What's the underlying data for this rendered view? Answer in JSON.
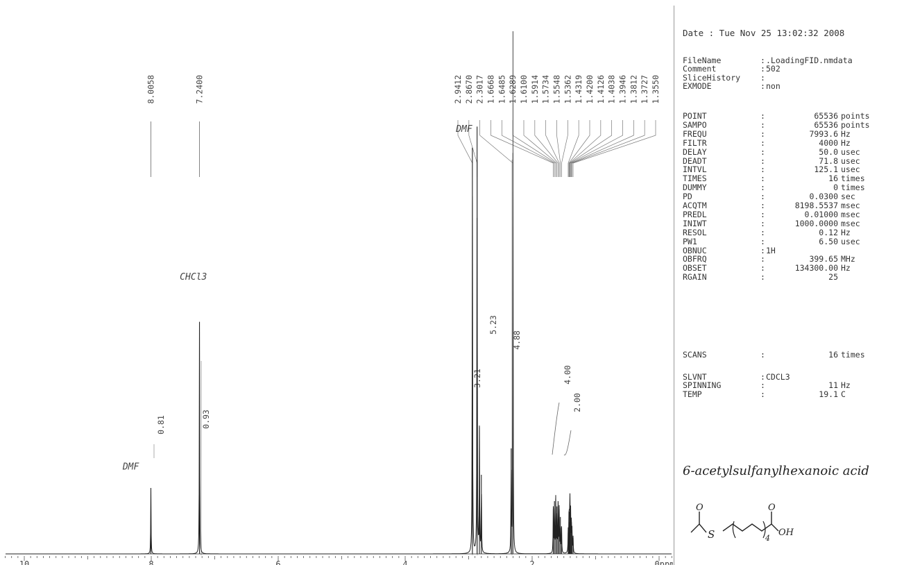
{
  "chart_data": {
    "type": "line",
    "title": "",
    "xlabel": "",
    "ylabel": "",
    "x_unit": "ppm",
    "xlim": [
      10.5,
      -0.3
    ],
    "x_ticks": [
      "10",
      "8",
      "6",
      "4",
      "2",
      "0ppm"
    ],
    "x_tick_values": [
      10,
      8,
      6,
      4,
      2,
      0
    ],
    "peak_labels": [
      "8.0058",
      "7.2400",
      "2.9412",
      "2.8670",
      "2.3017",
      "1.6668",
      "1.6485",
      "1.6289",
      "1.6100",
      "1.5914",
      "1.5734",
      "1.5548",
      "1.5362",
      "1.4319",
      "1.4200",
      "1.4126",
      "1.4038",
      "1.3946",
      "1.3812",
      "1.3727",
      "1.3550"
    ],
    "integrals": [
      {
        "label": "0.81",
        "ppm": 8.0058
      },
      {
        "label": "0.93",
        "ppm": 7.24
      },
      {
        "label": "3.21",
        "ppm": 2.9412
      },
      {
        "label": "5.23",
        "ppm": 2.867
      },
      {
        "label": "4.88",
        "ppm": 2.3017
      },
      {
        "label": "4.00",
        "ppm": 1.62
      },
      {
        "label": "2.00",
        "ppm": 1.4
      }
    ],
    "peaks": [
      {
        "ppm": 8.0058,
        "height": 0.125
      },
      {
        "ppm": 7.24,
        "height": 0.44
      },
      {
        "ppm": 2.9412,
        "height": 0.77
      },
      {
        "ppm": 2.867,
        "height": 0.81
      },
      {
        "ppm": 2.83,
        "height": 0.24
      },
      {
        "ppm": 2.8,
        "height": 0.15
      },
      {
        "ppm": 2.3017,
        "height": 0.76
      },
      {
        "ppm": 2.33,
        "height": 0.2
      },
      {
        "ppm": 1.6668,
        "height": 0.085
      },
      {
        "ppm": 1.6485,
        "height": 0.1
      },
      {
        "ppm": 1.6289,
        "height": 0.105
      },
      {
        "ppm": 1.61,
        "height": 0.09
      },
      {
        "ppm": 1.5914,
        "height": 0.1
      },
      {
        "ppm": 1.5734,
        "height": 0.085
      },
      {
        "ppm": 1.5548,
        "height": 0.07
      },
      {
        "ppm": 1.5362,
        "height": 0.05
      },
      {
        "ppm": 1.4319,
        "height": 0.04
      },
      {
        "ppm": 1.42,
        "height": 0.06
      },
      {
        "ppm": 1.4126,
        "height": 0.08
      },
      {
        "ppm": 1.4038,
        "height": 0.09
      },
      {
        "ppm": 1.3946,
        "height": 0.08
      },
      {
        "ppm": 1.3812,
        "height": 0.06
      },
      {
        "ppm": 1.3727,
        "height": 0.045
      },
      {
        "ppm": 1.355,
        "height": 0.03
      }
    ],
    "annotations": [
      {
        "text": "DMF",
        "ppm": 8.45,
        "y": 0.16
      },
      {
        "text": "CHCl3",
        "ppm": 7.55,
        "y": 0.52
      },
      {
        "text": "DMF",
        "ppm": 3.2,
        "y": 0.8
      }
    ]
  },
  "params": {
    "date": "Date : Tue Nov 25 13:02:32 2008",
    "header_rows": [
      {
        "key": "FileName",
        "value": ".LoadingFID.nmdata"
      },
      {
        "key": "Comment",
        "value": "502"
      },
      {
        "key": "SliceHistory",
        "value": ""
      },
      {
        "key": "EXMODE",
        "value": "non"
      }
    ],
    "acq_rows": [
      {
        "key": "POINT",
        "value": "65536",
        "unit": "points"
      },
      {
        "key": "SAMPO",
        "value": "65536",
        "unit": "points"
      },
      {
        "key": "FREQU",
        "value": "7993.6",
        "unit": "Hz"
      },
      {
        "key": "FILTR",
        "value": "4000",
        "unit": "Hz"
      },
      {
        "key": "DELAY",
        "value": "50.0",
        "unit": "usec"
      },
      {
        "key": "DEADT",
        "value": "71.8",
        "unit": "usec"
      },
      {
        "key": "INTVL",
        "value": "125.1",
        "unit": "usec"
      },
      {
        "key": "TIMES",
        "value": "16",
        "unit": "times"
      },
      {
        "key": "DUMMY",
        "value": "0",
        "unit": "times"
      },
      {
        "key": "PD",
        "value": "0.0300",
        "unit": "sec"
      },
      {
        "key": "ACQTM",
        "value": "8198.5537",
        "unit": "msec"
      },
      {
        "key": "PREDL",
        "value": "0.01000",
        "unit": "msec"
      },
      {
        "key": "INIWT",
        "value": "1000.0000",
        "unit": "msec"
      },
      {
        "key": "RESOL",
        "value": "0.12",
        "unit": "Hz"
      },
      {
        "key": "PW1",
        "value": "6.50",
        "unit": "usec"
      },
      {
        "key": "OBNUC",
        "text": "1H"
      },
      {
        "key": "OBFRQ",
        "value": "399.65",
        "unit": "MHz"
      },
      {
        "key": "OBSET",
        "value": "134300.00",
        "unit": "Hz"
      },
      {
        "key": "RGAIN",
        "value": "25",
        "unit": ""
      }
    ],
    "scans_row": {
      "key": "SCANS",
      "value": "16",
      "unit": "times"
    },
    "tail_rows": [
      {
        "key": "SLVNT",
        "text": "CDCL3"
      },
      {
        "key": "SPINNING",
        "value": "11",
        "unit": "Hz"
      },
      {
        "key": "TEMP",
        "value": "19.1",
        "unit": "C"
      }
    ],
    "compound": "6-acetylsulfanylhexanoic acid",
    "structure": {
      "o": "O",
      "s": "S",
      "n": "4",
      "oh": "OH"
    }
  }
}
